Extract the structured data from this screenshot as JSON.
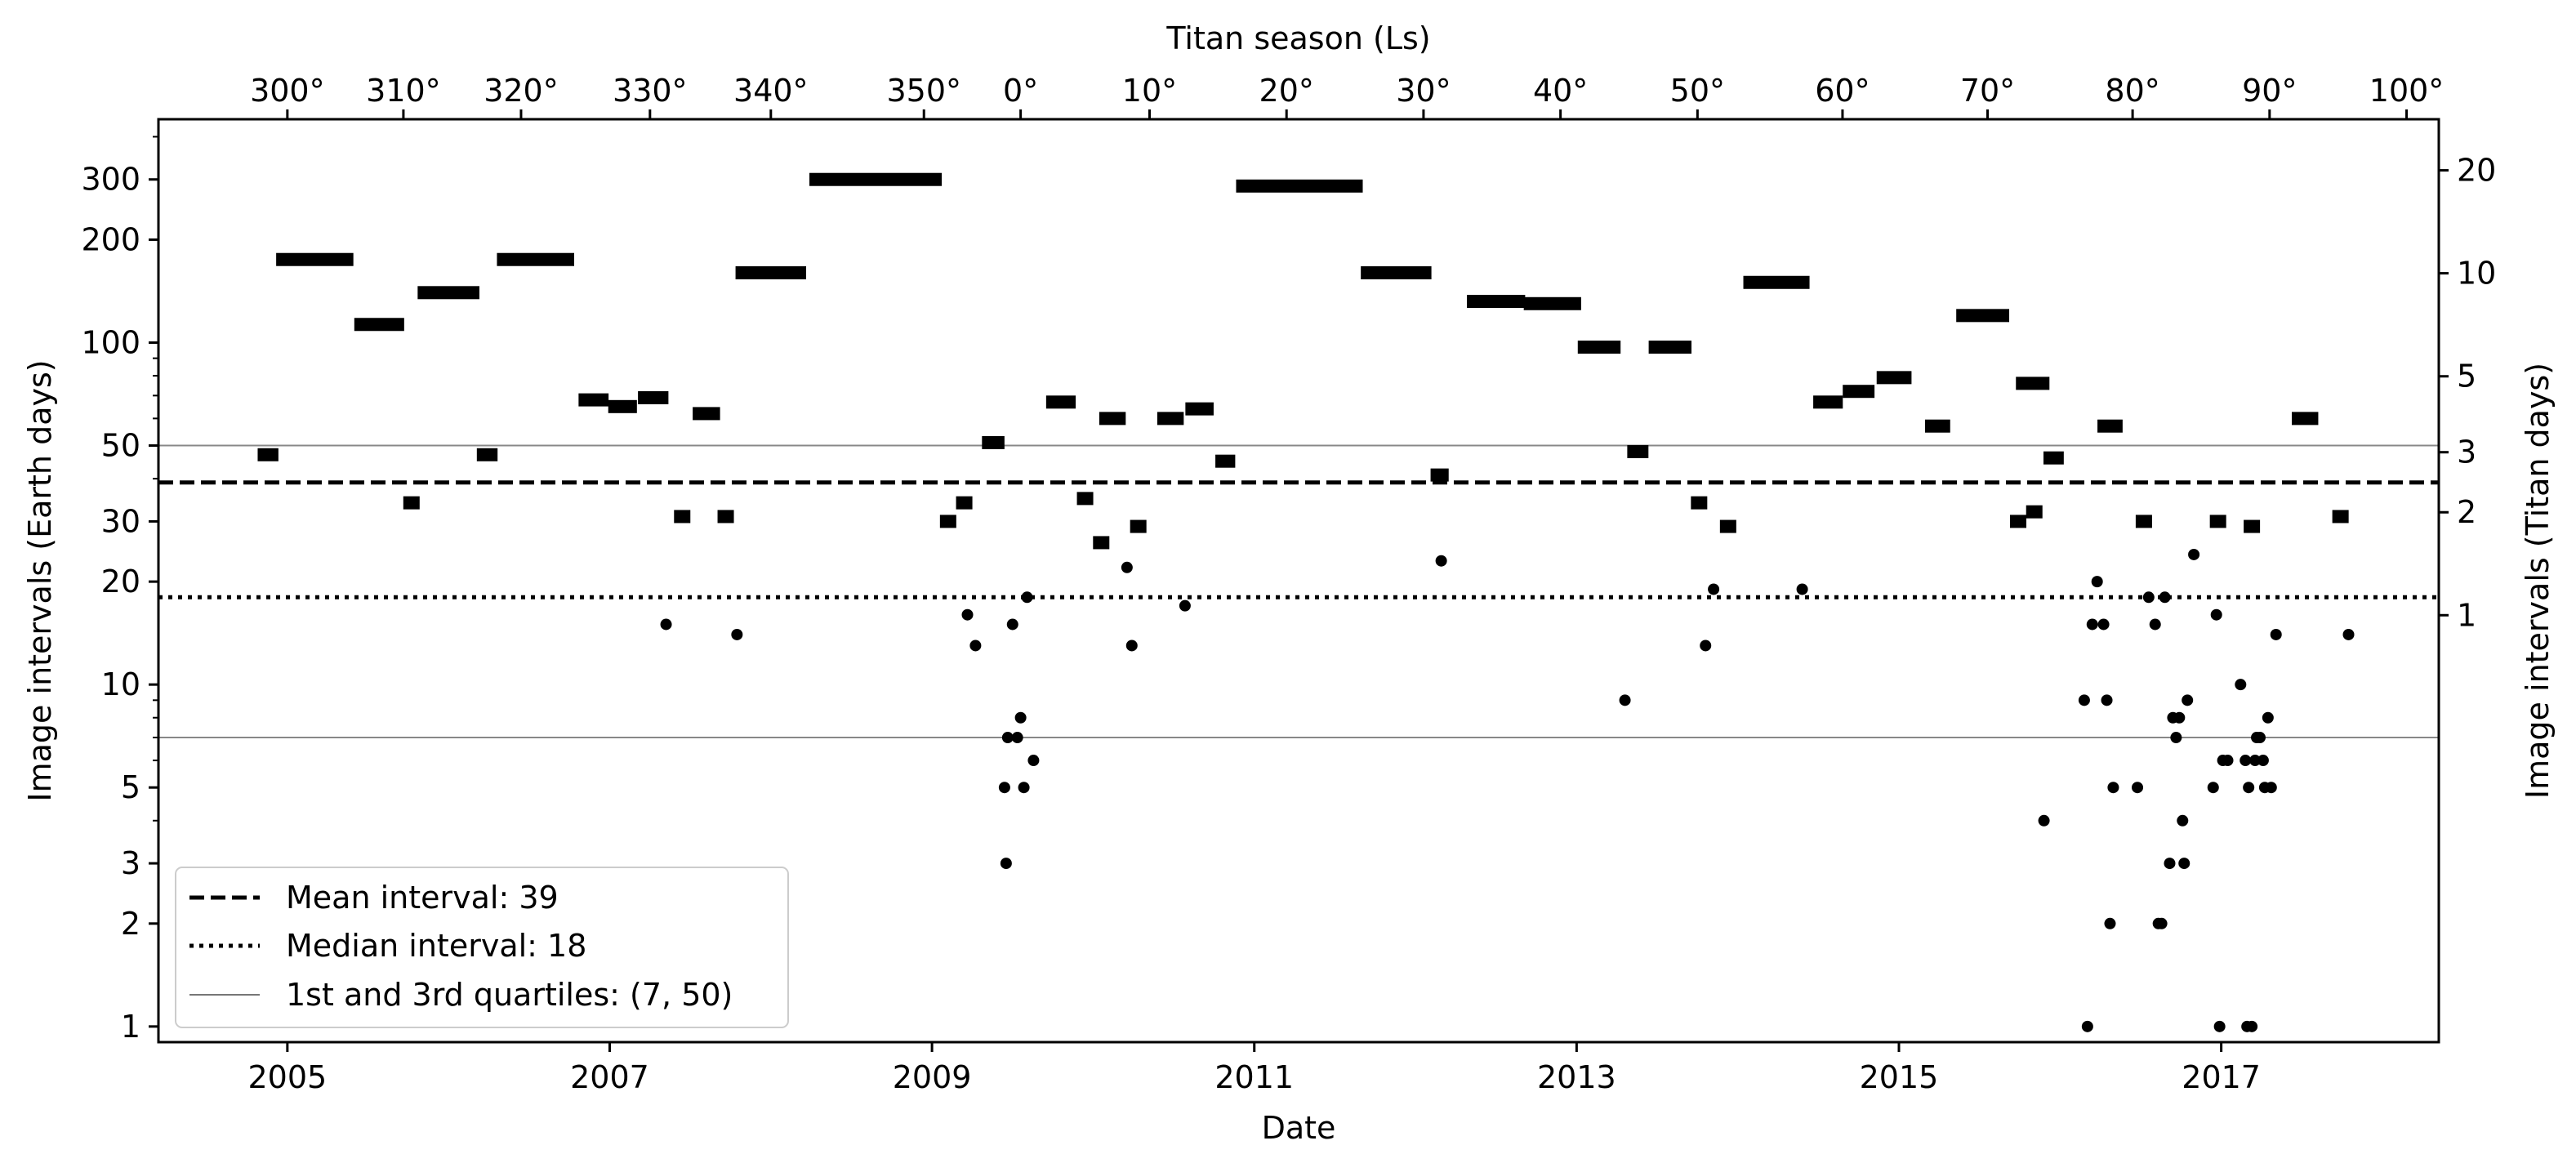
{
  "chart_data": {
    "type": "scatter",
    "xlabel": "Date",
    "ylabel": "Image intervals (Earth days)",
    "top_xlabel": "Titan season (Ls)",
    "right_ylabel": "Image intervals (Titan days)",
    "y_scale": "log",
    "xlim": [
      2004.2,
      2018.35
    ],
    "ylim": [
      0.9,
      450
    ],
    "x_ticks": [
      2005,
      2007,
      2009,
      2011,
      2013,
      2015,
      2017
    ],
    "x_tick_labels": [
      "2005",
      "2007",
      "2009",
      "2011",
      "2013",
      "2015",
      "2017"
    ],
    "y_ticks": [
      1,
      2,
      3,
      5,
      10,
      20,
      30,
      50,
      100,
      200,
      300
    ],
    "y_tick_labels": [
      "1",
      "2",
      "3",
      "5",
      "10",
      "20",
      "30",
      "50",
      "100",
      "200",
      "300"
    ],
    "top_ticks": [
      {
        "year": 2005.0,
        "label": "300°"
      },
      {
        "year": 2005.72,
        "label": "310°"
      },
      {
        "year": 2006.45,
        "label": "320°"
      },
      {
        "year": 2007.25,
        "label": "330°"
      },
      {
        "year": 2008.0,
        "label": "340°"
      },
      {
        "year": 2008.95,
        "label": "350°"
      },
      {
        "year": 2009.55,
        "label": "0°"
      },
      {
        "year": 2010.35,
        "label": "10°"
      },
      {
        "year": 2011.2,
        "label": "20°"
      },
      {
        "year": 2012.05,
        "label": "30°"
      },
      {
        "year": 2012.9,
        "label": "40°"
      },
      {
        "year": 2013.75,
        "label": "50°"
      },
      {
        "year": 2014.65,
        "label": "60°"
      },
      {
        "year": 2015.55,
        "label": "70°"
      },
      {
        "year": 2016.45,
        "label": "80°"
      },
      {
        "year": 2017.3,
        "label": "90°"
      },
      {
        "year": 2018.15,
        "label": "100°"
      }
    ],
    "right_ticks": [
      {
        "earth_days": 15.95,
        "label": "1"
      },
      {
        "earth_days": 31.9,
        "label": "2"
      },
      {
        "earth_days": 47.8,
        "label": "3"
      },
      {
        "earth_days": 79.7,
        "label": "5"
      },
      {
        "earth_days": 159.5,
        "label": "10"
      },
      {
        "earth_days": 319,
        "label": "20"
      }
    ],
    "mean": 39,
    "median": 18,
    "quartiles": [
      7,
      50
    ],
    "legend": {
      "position": "lower-left",
      "entries": [
        {
          "label": "Mean interval: 39",
          "style": "dashed"
        },
        {
          "label": "Median interval: 18",
          "style": "dotted"
        },
        {
          "label": "1st and 3rd quartiles: (7, 50)",
          "style": "thin-solid"
        }
      ]
    },
    "intervals": [
      {
        "x": 2004.88,
        "y": 47
      },
      {
        "x": 2005.17,
        "y": 175
      },
      {
        "x": 2005.57,
        "y": 113
      },
      {
        "x": 2005.77,
        "y": 34
      },
      {
        "x": 2006.0,
        "y": 140
      },
      {
        "x": 2006.24,
        "y": 47
      },
      {
        "x": 2006.54,
        "y": 175
      },
      {
        "x": 2006.9,
        "y": 68
      },
      {
        "x": 2007.08,
        "y": 65
      },
      {
        "x": 2007.27,
        "y": 69
      },
      {
        "x": 2007.45,
        "y": 31
      },
      {
        "x": 2007.6,
        "y": 62
      },
      {
        "x": 2007.72,
        "y": 31
      },
      {
        "x": 2008.0,
        "y": 160
      },
      {
        "x": 2008.65,
        "y": 300
      },
      {
        "x": 2009.1,
        "y": 30
      },
      {
        "x": 2009.2,
        "y": 34
      },
      {
        "x": 2009.38,
        "y": 51
      },
      {
        "x": 2009.8,
        "y": 67
      },
      {
        "x": 2009.95,
        "y": 35
      },
      {
        "x": 2010.05,
        "y": 26
      },
      {
        "x": 2010.12,
        "y": 60
      },
      {
        "x": 2010.28,
        "y": 29
      },
      {
        "x": 2010.48,
        "y": 60
      },
      {
        "x": 2010.66,
        "y": 64
      },
      {
        "x": 2010.82,
        "y": 45
      },
      {
        "x": 2011.28,
        "y": 287
      },
      {
        "x": 2011.88,
        "y": 160
      },
      {
        "x": 2012.15,
        "y": 41
      },
      {
        "x": 2012.5,
        "y": 132
      },
      {
        "x": 2012.85,
        "y": 130
      },
      {
        "x": 2013.14,
        "y": 97
      },
      {
        "x": 2013.38,
        "y": 48
      },
      {
        "x": 2013.58,
        "y": 97
      },
      {
        "x": 2013.76,
        "y": 34
      },
      {
        "x": 2013.94,
        "y": 29
      },
      {
        "x": 2014.24,
        "y": 150
      },
      {
        "x": 2014.56,
        "y": 67
      },
      {
        "x": 2014.75,
        "y": 72
      },
      {
        "x": 2014.97,
        "y": 79
      },
      {
        "x": 2015.24,
        "y": 57
      },
      {
        "x": 2015.52,
        "y": 120
      },
      {
        "x": 2015.83,
        "y": 76
      },
      {
        "x": 2015.96,
        "y": 46
      },
      {
        "x": 2015.74,
        "y": 30
      },
      {
        "x": 2015.84,
        "y": 32
      },
      {
        "x": 2016.31,
        "y": 57
      },
      {
        "x": 2016.52,
        "y": 30
      },
      {
        "x": 2016.98,
        "y": 30
      },
      {
        "x": 2017.19,
        "y": 29
      },
      {
        "x": 2017.52,
        "y": 60
      },
      {
        "x": 2017.74,
        "y": 31
      }
    ],
    "points": [
      {
        "x": 2007.35,
        "y": 15
      },
      {
        "x": 2007.79,
        "y": 14
      },
      {
        "x": 2009.22,
        "y": 16
      },
      {
        "x": 2009.27,
        "y": 13
      },
      {
        "x": 2009.45,
        "y": 5
      },
      {
        "x": 2009.46,
        "y": 3
      },
      {
        "x": 2009.47,
        "y": 7
      },
      {
        "x": 2009.5,
        "y": 15
      },
      {
        "x": 2009.53,
        "y": 7
      },
      {
        "x": 2009.55,
        "y": 8
      },
      {
        "x": 2009.57,
        "y": 5
      },
      {
        "x": 2009.59,
        "y": 18
      },
      {
        "x": 2009.63,
        "y": 6
      },
      {
        "x": 2010.21,
        "y": 22
      },
      {
        "x": 2010.24,
        "y": 13
      },
      {
        "x": 2010.57,
        "y": 17
      },
      {
        "x": 2012.16,
        "y": 23
      },
      {
        "x": 2013.3,
        "y": 9
      },
      {
        "x": 2013.8,
        "y": 13
      },
      {
        "x": 2013.85,
        "y": 19
      },
      {
        "x": 2014.4,
        "y": 19
      },
      {
        "x": 2015.9,
        "y": 4
      },
      {
        "x": 2016.15,
        "y": 9
      },
      {
        "x": 2016.17,
        "y": 1
      },
      {
        "x": 2016.2,
        "y": 15
      },
      {
        "x": 2016.23,
        "y": 20
      },
      {
        "x": 2016.27,
        "y": 15
      },
      {
        "x": 2016.29,
        "y": 9
      },
      {
        "x": 2016.31,
        "y": 2
      },
      {
        "x": 2016.33,
        "y": 5
      },
      {
        "x": 2016.48,
        "y": 5
      },
      {
        "x": 2016.55,
        "y": 18
      },
      {
        "x": 2016.59,
        "y": 15
      },
      {
        "x": 2016.61,
        "y": 2
      },
      {
        "x": 2016.63,
        "y": 2
      },
      {
        "x": 2016.65,
        "y": 18
      },
      {
        "x": 2016.68,
        "y": 3
      },
      {
        "x": 2016.7,
        "y": 8
      },
      {
        "x": 2016.72,
        "y": 7
      },
      {
        "x": 2016.74,
        "y": 8
      },
      {
        "x": 2016.76,
        "y": 4
      },
      {
        "x": 2016.77,
        "y": 3
      },
      {
        "x": 2016.79,
        "y": 9
      },
      {
        "x": 2016.83,
        "y": 24
      },
      {
        "x": 2016.95,
        "y": 5
      },
      {
        "x": 2016.97,
        "y": 16
      },
      {
        "x": 2016.99,
        "y": 1
      },
      {
        "x": 2017.01,
        "y": 6
      },
      {
        "x": 2017.04,
        "y": 6
      },
      {
        "x": 2017.12,
        "y": 10
      },
      {
        "x": 2017.15,
        "y": 6
      },
      {
        "x": 2017.16,
        "y": 1
      },
      {
        "x": 2017.17,
        "y": 5
      },
      {
        "x": 2017.19,
        "y": 1
      },
      {
        "x": 2017.21,
        "y": 6
      },
      {
        "x": 2017.22,
        "y": 7
      },
      {
        "x": 2017.24,
        "y": 7
      },
      {
        "x": 2017.26,
        "y": 6
      },
      {
        "x": 2017.27,
        "y": 5
      },
      {
        "x": 2017.29,
        "y": 8
      },
      {
        "x": 2017.31,
        "y": 5
      },
      {
        "x": 2017.34,
        "y": 14
      },
      {
        "x": 2017.79,
        "y": 14
      }
    ]
  }
}
